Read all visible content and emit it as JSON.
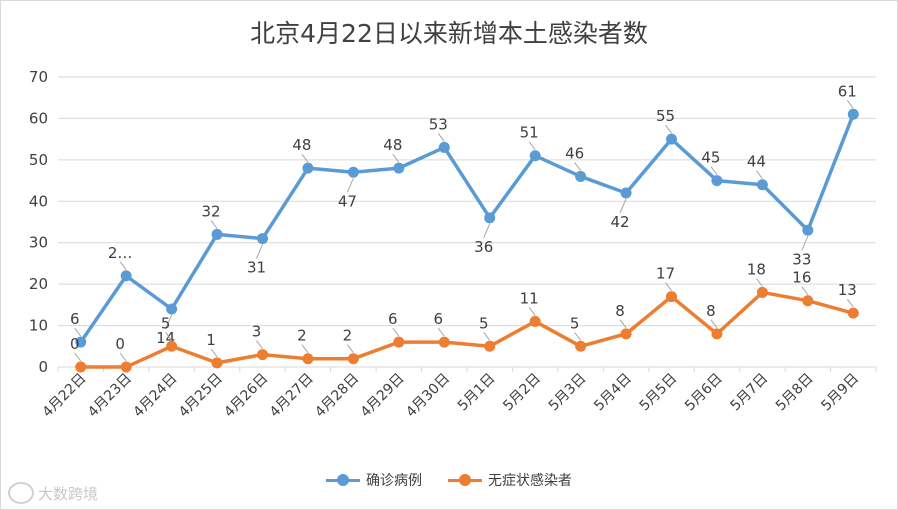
{
  "watermark": "大数跨境",
  "chart_data": {
    "type": "line",
    "title": "北京4月22日以来新增本土感染者数",
    "categories": [
      "4月22日",
      "4月23日",
      "4月24日",
      "4月25日",
      "4月26日",
      "4月27日",
      "4月28日",
      "4月29日",
      "4月30日",
      "5月1日",
      "5月2日",
      "5月3日",
      "5月4日",
      "5月5日",
      "5月6日",
      "5月7日",
      "5月8日",
      "5月9日"
    ],
    "ylim": [
      0,
      70
    ],
    "yticks": [
      0,
      10,
      20,
      30,
      40,
      50,
      60,
      70
    ],
    "grid": true,
    "legend_position": "bottom",
    "series": [
      {
        "name": "确诊病例",
        "color": "#5b9bd5",
        "values": [
          6,
          22,
          14,
          32,
          31,
          48,
          47,
          48,
          53,
          36,
          51,
          46,
          42,
          55,
          45,
          44,
          33,
          61
        ],
        "labels": [
          "6",
          "2…",
          "14",
          "32",
          "31",
          "48",
          "47",
          "48",
          "53",
          "36",
          "51",
          "46",
          "42",
          "55",
          "45",
          "44",
          "33",
          "61"
        ]
      },
      {
        "name": "无症状感染者",
        "color": "#ed7d31",
        "values": [
          0,
          0,
          5,
          1,
          3,
          2,
          2,
          6,
          6,
          5,
          11,
          5,
          8,
          17,
          8,
          18,
          16,
          13
        ],
        "labels": [
          "0",
          "0",
          "5",
          "1",
          "3",
          "2",
          "2",
          "6",
          "6",
          "5",
          "11",
          "5",
          "8",
          "17",
          "8",
          "18",
          "16",
          "13"
        ]
      }
    ]
  }
}
